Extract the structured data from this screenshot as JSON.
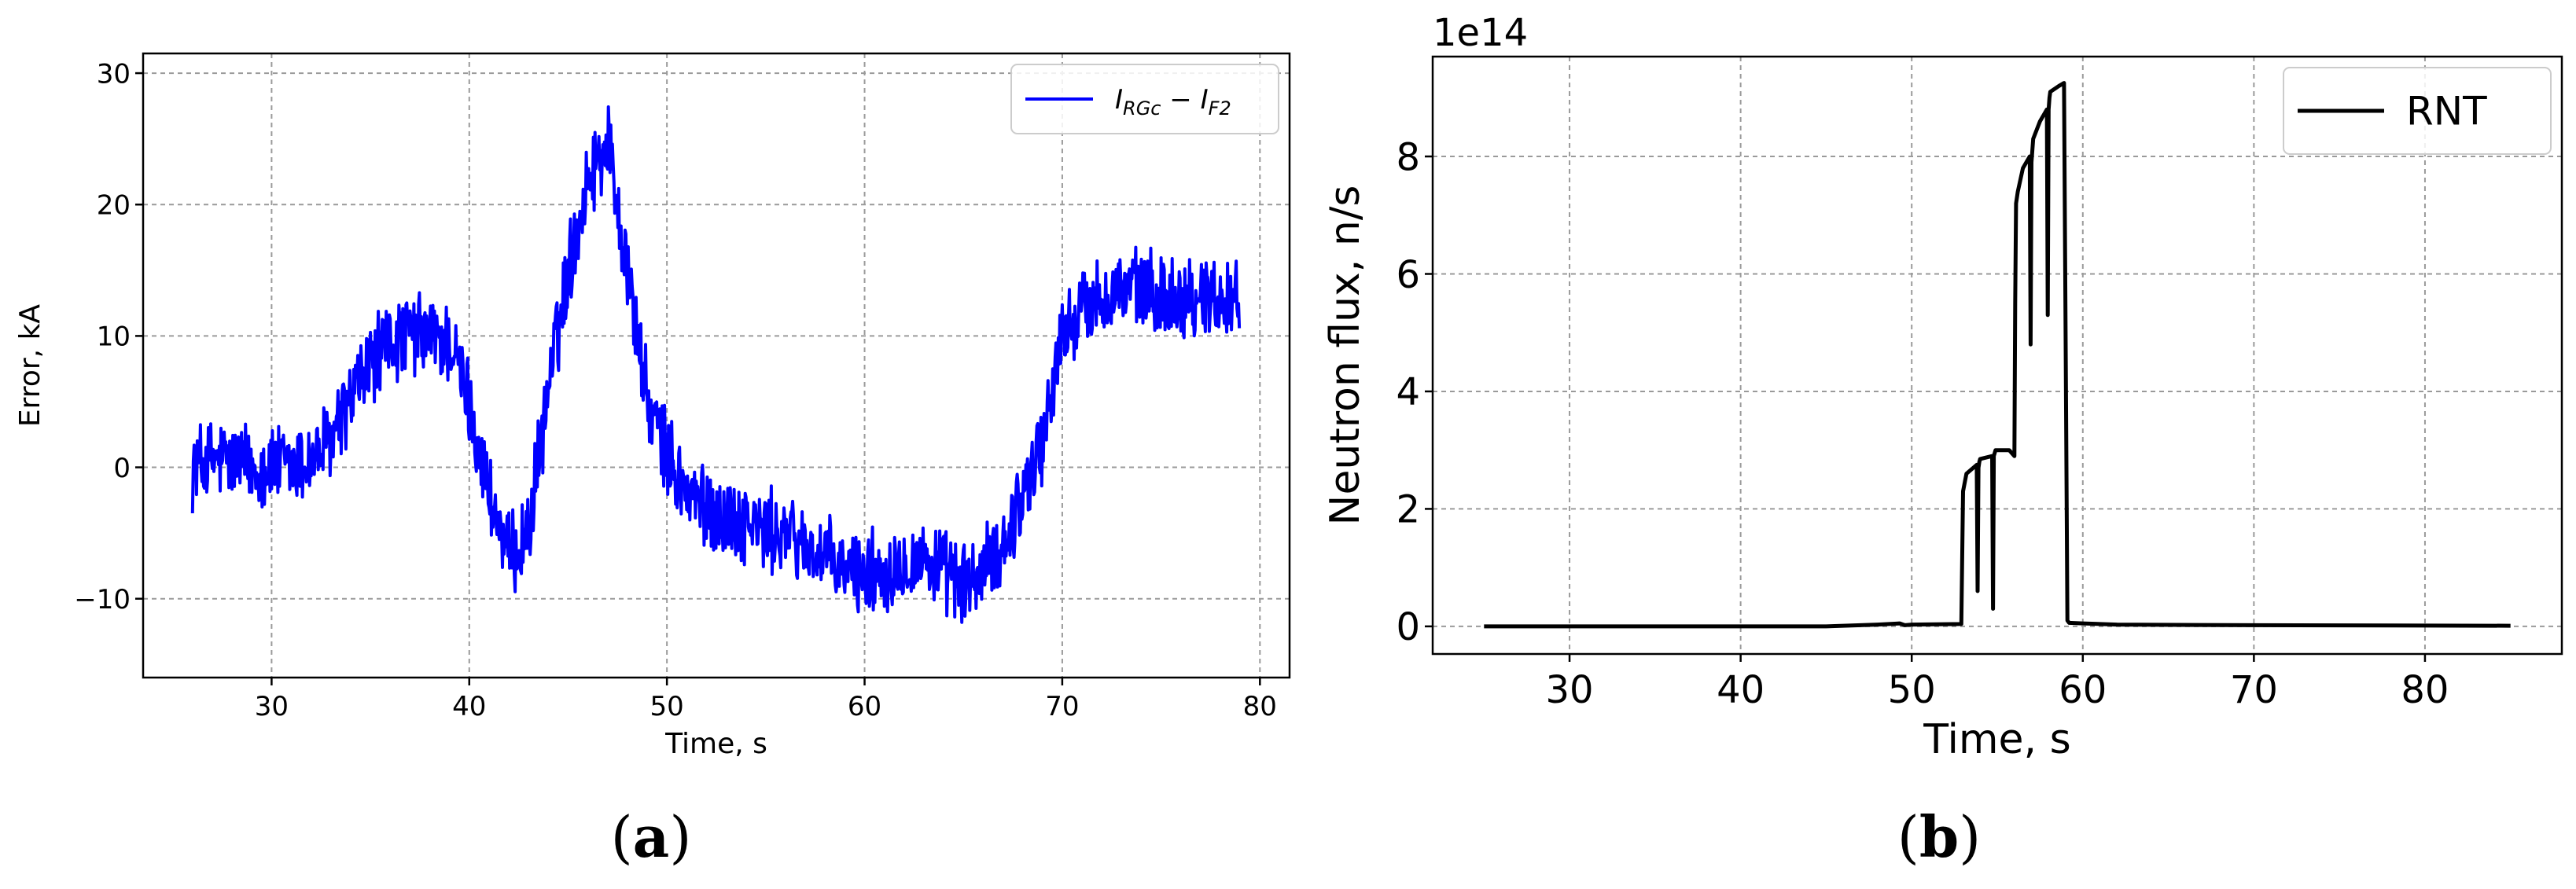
{
  "chart_data": [
    {
      "type": "line",
      "panel_label": "(a)",
      "xlabel": "Time, s",
      "ylabel": "Error, kA",
      "xlim": [
        23.5,
        81.5
      ],
      "ylim": [
        -16,
        31.5
      ],
      "xticks": [
        30,
        40,
        50,
        60,
        70,
        80
      ],
      "yticks": [
        -10,
        0,
        10,
        20,
        30
      ],
      "grid": true,
      "legend_position": "top-right",
      "series": [
        {
          "name": "I_RGc − I_F2",
          "name_main_1": "I",
          "name_sub_1": "RGc",
          "name_minus": " − ",
          "name_main_2": "I",
          "name_sub_2": "F2",
          "color": "#0000ff",
          "x": [
            26,
            27,
            28,
            29,
            30,
            31,
            32,
            33,
            34,
            35,
            36,
            37,
            38,
            39,
            40,
            41,
            42,
            43,
            44,
            45,
            46,
            47,
            48,
            49,
            50,
            51,
            52,
            53,
            54,
            55,
            56,
            57,
            58,
            59,
            60,
            61,
            62,
            63,
            64,
            65,
            66,
            67,
            68,
            69,
            70,
            71,
            72,
            73,
            74,
            75,
            76,
            77,
            78,
            79
          ],
          "y": [
            0,
            0.5,
            0.5,
            0,
            0,
            0,
            0.5,
            2,
            5,
            8,
            9.5,
            10,
            10,
            9.5,
            5,
            -2,
            -7,
            -5,
            6,
            15,
            22,
            25,
            15,
            5,
            1,
            -2,
            -3,
            -4,
            -4,
            -5,
            -5,
            -6,
            -7,
            -8,
            -8,
            -8,
            -7,
            -7,
            -8,
            -9,
            -8,
            -6,
            -2,
            2,
            10,
            12,
            13,
            13.5,
            13.5,
            13,
            13,
            13,
            13,
            13
          ],
          "noise_amplitude": 2.8
        }
      ]
    },
    {
      "type": "line",
      "panel_label": "(b)",
      "xlabel": "Time, s",
      "ylabel": "Neutron flux, n/s",
      "scale_label": "1e14",
      "xlim": [
        22,
        88
      ],
      "ylim": [
        -0.47,
        9.7
      ],
      "xticks": [
        30,
        40,
        50,
        60,
        70,
        80
      ],
      "yticks": [
        0,
        2,
        4,
        6,
        8
      ],
      "grid": true,
      "legend_position": "top-right",
      "series": [
        {
          "name": "RNT",
          "color": "#000000",
          "x": [
            25,
            45,
            48,
            49.3,
            49.6,
            50,
            52.9,
            53.0,
            53.2,
            53.8,
            53.85,
            53.9,
            53.95,
            54.0,
            54.7,
            54.75,
            54.8,
            54.85,
            54.9,
            55.7,
            56.0,
            56.05,
            56.1,
            56.2,
            56.5,
            56.9,
            56.95,
            57.0,
            57.05,
            57.1,
            57.5,
            57.9,
            57.95,
            58.0,
            58.05,
            58.1,
            58.6,
            58.9,
            59.1,
            59.2,
            60,
            62,
            70,
            85
          ],
          "y": [
            0,
            0,
            0.03,
            0.05,
            0.02,
            0.03,
            0.04,
            2.3,
            2.6,
            2.75,
            0.6,
            2.7,
            2.8,
            2.85,
            2.9,
            0.3,
            2.9,
            2.95,
            3.0,
            3.0,
            2.9,
            5.5,
            7.2,
            7.4,
            7.8,
            8.0,
            4.8,
            7.9,
            8.1,
            8.3,
            8.6,
            8.8,
            5.3,
            8.8,
            9.0,
            9.1,
            9.2,
            9.25,
            0.1,
            0.06,
            0.05,
            0.03,
            0.02,
            0.01
          ]
        }
      ]
    }
  ]
}
